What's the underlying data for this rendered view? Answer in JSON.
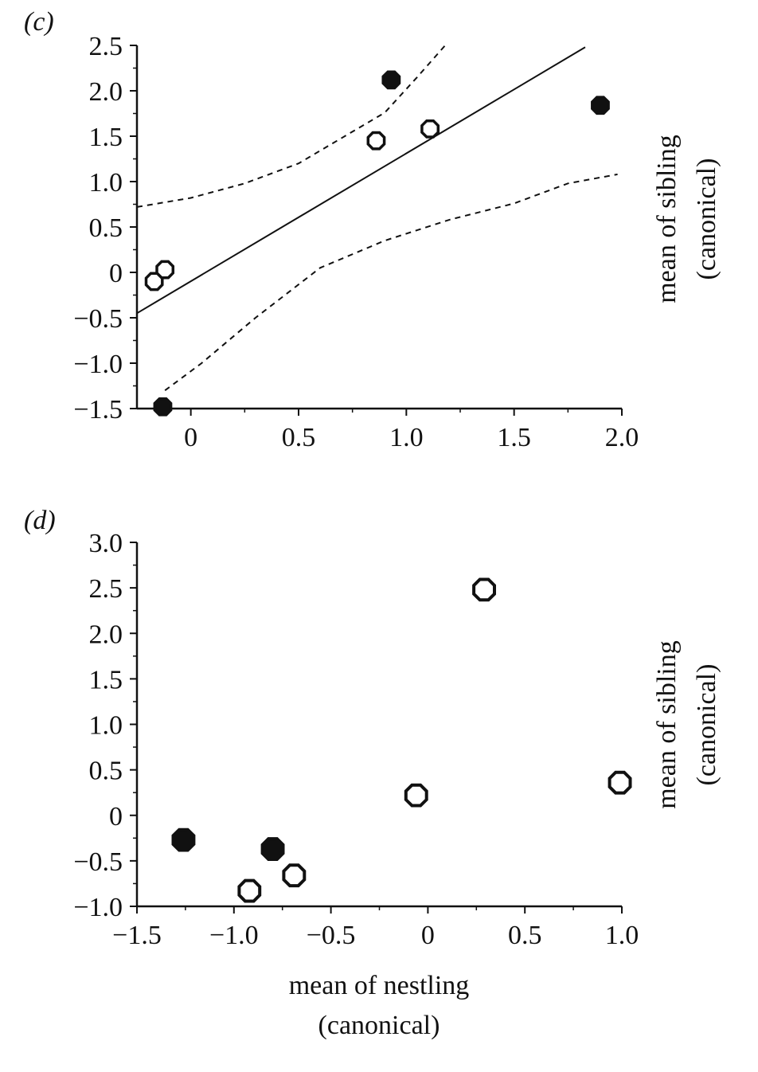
{
  "chart_data": [
    {
      "type": "scatter",
      "panel_label": "(c)",
      "xlim": [
        -0.25,
        2.0
      ],
      "ylim": [
        -1.5,
        2.5
      ],
      "x_ticks": [
        0,
        0.5,
        1.0,
        1.5,
        2.0
      ],
      "x_tick_labels": [
        "0",
        "0.5",
        "1.0",
        "1.5",
        "2.0"
      ],
      "y_ticks": [
        2.5,
        2.0,
        1.5,
        1.0,
        0.5,
        0,
        -0.5,
        -1.0,
        -1.5
      ],
      "y_tick_labels": [
        "2.5",
        "2.0",
        "1.5",
        "1.0",
        "0.5",
        "0",
        "−0.5",
        "−1.0",
        "−1.5"
      ],
      "ylabel": [
        "mean of sibling",
        "(canonical)"
      ],
      "xlabel": "",
      "grid": false,
      "series": [
        {
          "marker": "filled",
          "points": [
            [
              0.93,
              2.12
            ],
            [
              1.9,
              1.84
            ],
            [
              -0.13,
              -1.48
            ]
          ]
        },
        {
          "marker": "open",
          "points": [
            [
              0.86,
              1.45
            ],
            [
              1.11,
              1.58
            ],
            [
              -0.17,
              -0.1
            ],
            [
              -0.12,
              0.03
            ]
          ]
        }
      ],
      "fit_line": [
        [
          -0.25,
          -0.45
        ],
        [
          1.83,
          2.48
        ]
      ],
      "confidence_bands": {
        "upper": [
          [
            -0.25,
            0.72
          ],
          [
            0.0,
            0.82
          ],
          [
            0.25,
            0.98
          ],
          [
            0.5,
            1.2
          ],
          [
            0.7,
            1.48
          ],
          [
            0.9,
            1.76
          ],
          [
            1.05,
            2.15
          ],
          [
            1.18,
            2.5
          ]
        ],
        "lower": [
          [
            -0.12,
            -1.3
          ],
          [
            0.05,
            -1.0
          ],
          [
            0.3,
            -0.5
          ],
          [
            0.6,
            0.05
          ],
          [
            0.9,
            0.35
          ],
          [
            1.2,
            0.58
          ],
          [
            1.5,
            0.76
          ],
          [
            1.75,
            0.98
          ],
          [
            1.98,
            1.08
          ]
        ]
      }
    },
    {
      "type": "scatter",
      "panel_label": "(d)",
      "xlim": [
        -1.5,
        1.0
      ],
      "ylim": [
        -1.0,
        3.0
      ],
      "x_ticks": [
        -1.5,
        -1.0,
        -0.5,
        0,
        0.5,
        1.0
      ],
      "x_tick_labels": [
        "−1.5",
        "−1.0",
        "−0.5",
        "0",
        "0.5",
        "1.0"
      ],
      "y_ticks": [
        3.0,
        2.5,
        2.0,
        1.5,
        1.0,
        0.5,
        0,
        -0.5,
        -1.0
      ],
      "y_tick_labels": [
        "3.0",
        "2.5",
        "2.0",
        "1.5",
        "1.0",
        "0.5",
        "0",
        "−0.5",
        "−1.0"
      ],
      "ylabel": [
        "mean of sibling",
        "(canonical)"
      ],
      "xlabel": [
        "mean of nestling",
        "(canonical)"
      ],
      "grid": false,
      "series": [
        {
          "marker": "filled",
          "points": [
            [
              -1.26,
              -0.27
            ],
            [
              -0.8,
              -0.37
            ]
          ]
        },
        {
          "marker": "open",
          "points": [
            [
              -0.92,
              -0.83
            ],
            [
              -0.69,
              -0.66
            ],
            [
              -0.06,
              0.22
            ],
            [
              0.29,
              2.48
            ],
            [
              0.99,
              0.36
            ]
          ]
        }
      ]
    }
  ]
}
